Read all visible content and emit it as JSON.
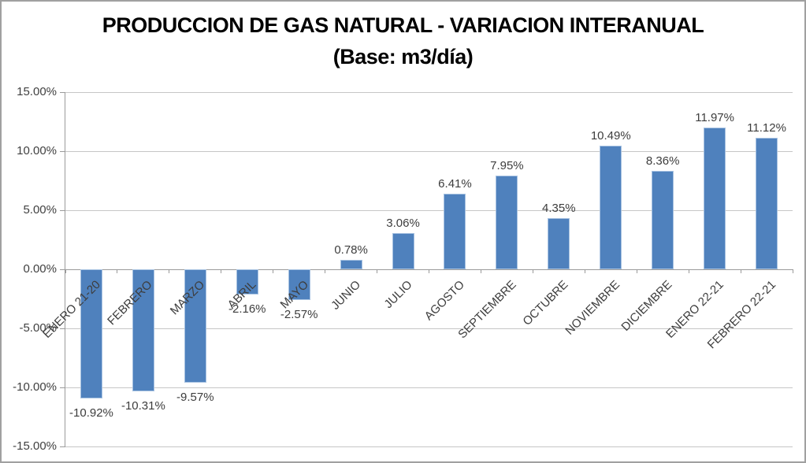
{
  "title": {
    "line1": "PRODUCCION DE GAS NATURAL - VARIACION INTERANUAL",
    "line2": "(Base: m3/día)"
  },
  "chart_data": {
    "type": "bar",
    "title": "PRODUCCION DE GAS NATURAL - VARIACION INTERANUAL (Base: m3/día)",
    "xlabel": "",
    "ylabel": "",
    "categories": [
      "ENERO 21-20",
      "FEBRERO",
      "MARZO",
      "ABRIL",
      "MAYO",
      "JUNIO",
      "JULIO",
      "AGOSTO",
      "SEPTIEMBRE",
      "OCTUBRE",
      "NOVIEMBRE",
      "DICIEMBRE",
      "ENERO 22-21",
      "FEBRERO 22-21"
    ],
    "values": [
      -10.92,
      -10.31,
      -9.57,
      -2.16,
      -2.57,
      0.78,
      3.06,
      6.41,
      7.95,
      4.35,
      10.49,
      8.36,
      11.97,
      11.12
    ],
    "labels": [
      "-10.92%",
      "-10.31%",
      "-9.57%",
      "-2.16%",
      "-2.57%",
      "0.78%",
      "3.06%",
      "6.41%",
      "7.95%",
      "4.35%",
      "10.49%",
      "8.36%",
      "11.97%",
      "11.12%"
    ],
    "ylim": [
      -15,
      15
    ],
    "yticks": [
      {
        "value": 15,
        "label": "15.00%"
      },
      {
        "value": 10,
        "label": "10.00%"
      },
      {
        "value": 5,
        "label": "5.00%"
      },
      {
        "value": 0,
        "label": "0.00%"
      },
      {
        "value": -5,
        "label": "-5.00%"
      },
      {
        "value": -10,
        "label": "-10.00%"
      },
      {
        "value": -15,
        "label": "-15.00%"
      }
    ],
    "grid": true,
    "legend": "none",
    "colors": {
      "bar_fill": "#4F81BD",
      "bar_border": "#A7C2E1",
      "gridline": "#C6C6C6",
      "axis": "#9A9A9A",
      "label_text": "#3D3D3D",
      "title_text": "#000000"
    }
  }
}
